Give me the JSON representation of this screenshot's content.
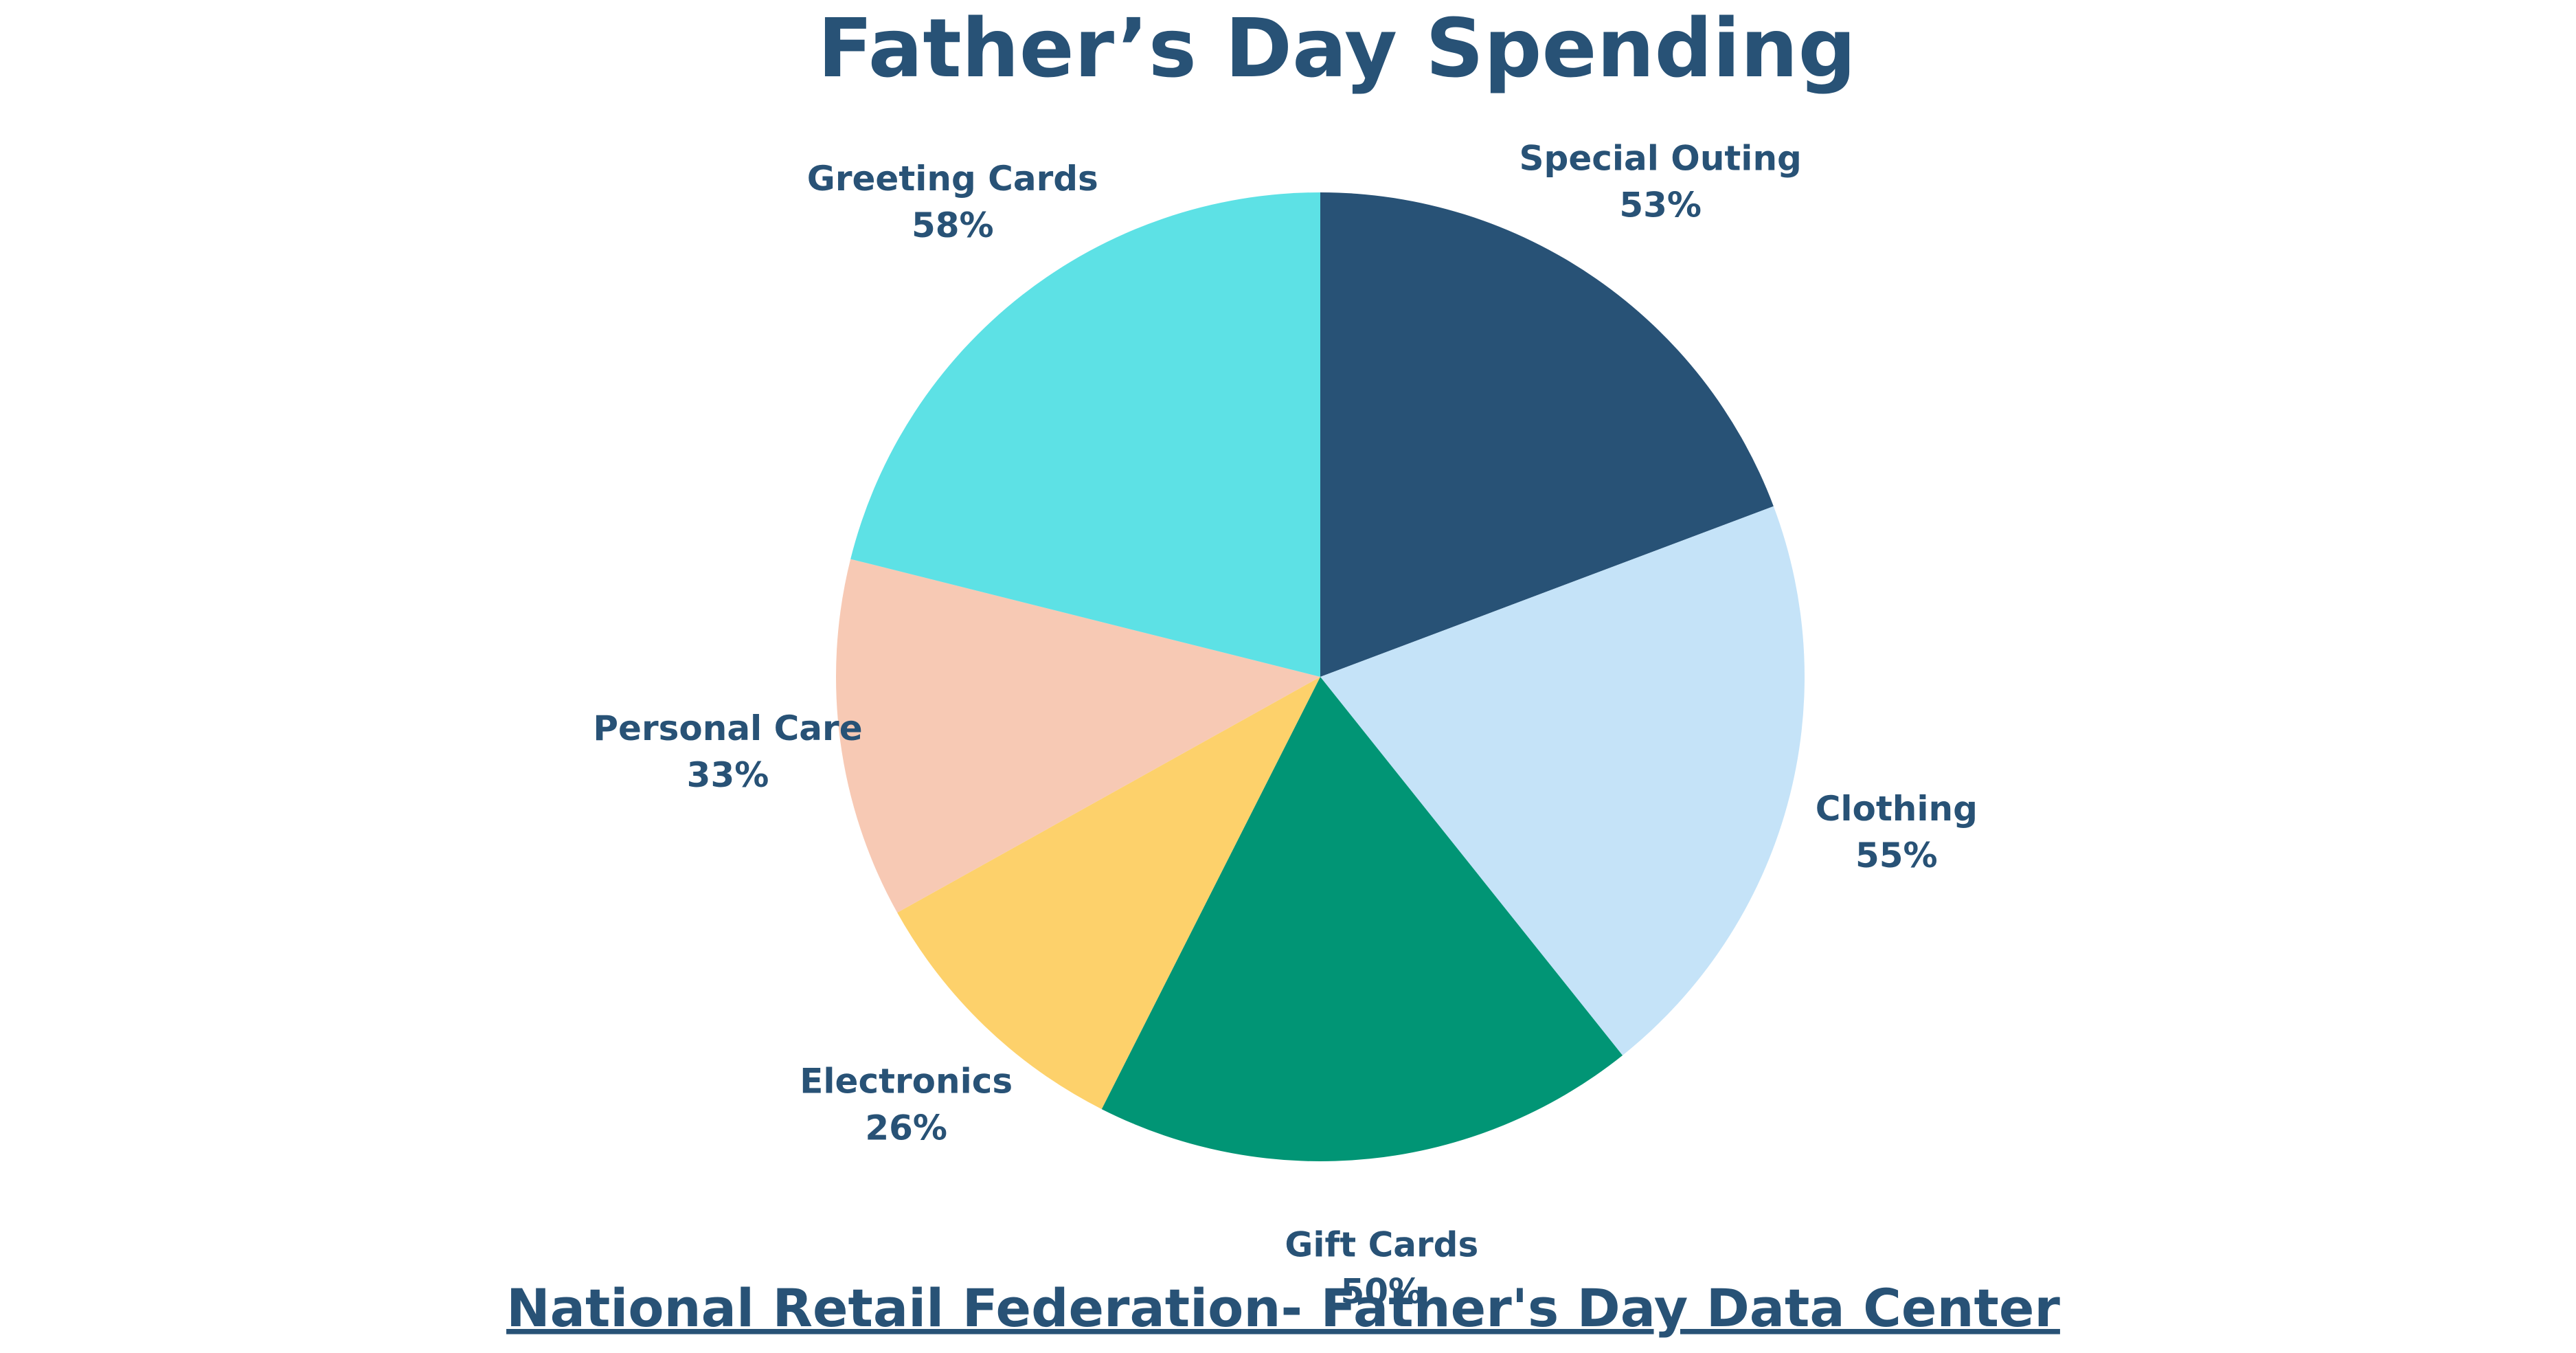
{
  "chart_data": {
    "type": "pie",
    "title": "Father’s Day Spending",
    "categories": [
      "Special Outing",
      "Clothing",
      "Gift Cards",
      "Electronics",
      "Personal Care",
      "Greeting Cards"
    ],
    "values": [
      53,
      55,
      50,
      26,
      33,
      58
    ],
    "value_labels": [
      "53%",
      "55%",
      "50%",
      "26%",
      "33%",
      "58%"
    ],
    "unit": "%",
    "colors": [
      "#285276",
      "#c5e3f8",
      "#019575",
      "#fdd16b",
      "#f7c9b4",
      "#5de1e5"
    ],
    "start_angle": "12 o'clock",
    "direction": "clockwise",
    "legend": "none; labels placed outside slices"
  },
  "source": {
    "label": "National Retail Federation- Father's Day Data Center"
  },
  "text_color": "#285276",
  "background": "#ffffff"
}
